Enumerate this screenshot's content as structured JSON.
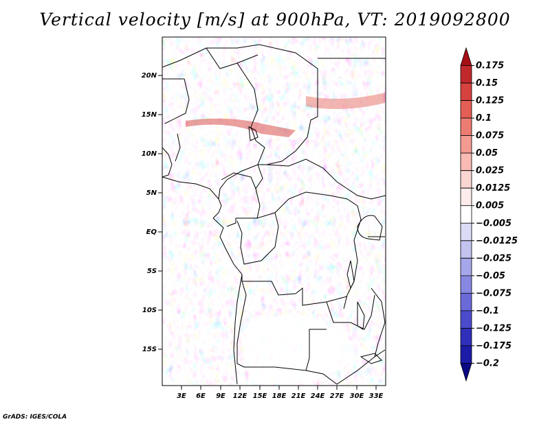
{
  "title": "Vertical velocity [m/s] at 900hPa, VT: 2019092800",
  "credit": "GrADS: IGES/COLA",
  "lat_ticks": [
    "20N",
    "15N",
    "10N",
    "5N",
    "EQ",
    "5S",
    "10S",
    "15S"
  ],
  "lon_ticks": [
    "3E",
    "6E",
    "9E",
    "12E",
    "15E",
    "18E",
    "21E",
    "24E",
    "27E",
    "30E",
    "33E"
  ],
  "colorbar": {
    "labels": [
      "0.175",
      "0.15",
      "0.125",
      "0.1",
      "0.075",
      "0.05",
      "0.025",
      "0.0125",
      "0.005",
      "-0.005",
      "-0.0125",
      "-0.025",
      "-0.05",
      "-0.075",
      "-0.1",
      "-0.125",
      "-0.175",
      "-0.2"
    ],
    "colors": [
      "#a50f15",
      "#c0282c",
      "#d6423e",
      "#e35e55",
      "#ec7c72",
      "#f39b92",
      "#f8bab3",
      "#fbd6d2",
      "#fdecea",
      "#ffffff",
      "#dcdcf6",
      "#c3c3f0",
      "#a6a6ea",
      "#8888e2",
      "#6a6ad8",
      "#4b4bcc",
      "#2f2fbb",
      "#1c1ca8",
      "#0a0a85"
    ]
  }
}
